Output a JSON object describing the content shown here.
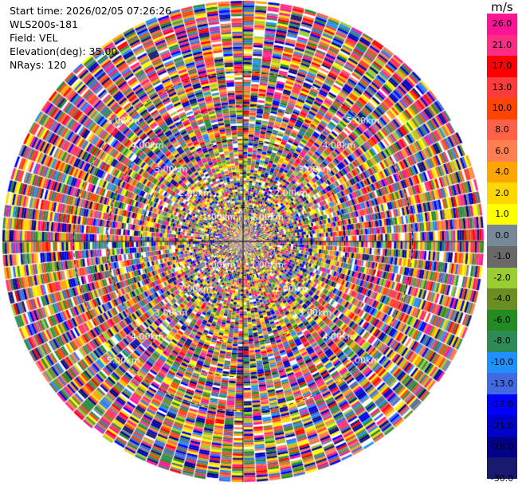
{
  "info": {
    "start_time": "Start time: 2026/02/05 07:26:26",
    "instrument": "WLS200s-181",
    "field": "Field: VEL",
    "elevation": "Elevation(deg): 35.00",
    "nrays": "NRays: 120"
  },
  "colorbar": {
    "unit": "m/s",
    "ticks": [
      "26.0",
      "21.0",
      "17.0",
      "13.0",
      "10.0",
      "8.0",
      "6.0",
      "4.0",
      "2.0",
      "1.0",
      "0.0",
      "-1.0",
      "-2.0",
      "-4.0",
      "-6.0",
      "-8.0",
      "-10.0",
      "-13.0",
      "-17.0",
      "-21.0",
      "-26.0",
      "-30.0"
    ],
    "colors": [
      "#ff1493",
      "#ff2e82",
      "#ff0000",
      "#ff3c3c",
      "#ff4500",
      "#ff6347",
      "#ff7f50",
      "#ffa500",
      "#ffd700",
      "#ffff00",
      "#778899",
      "#696969",
      "#9acd32",
      "#6b8e23",
      "#228b22",
      "#2e8b57",
      "#1e90ff",
      "#4169e1",
      "#0000ff",
      "#0000cd",
      "#00008b",
      "#191970"
    ]
  },
  "chart_data": {
    "type": "heatmap",
    "projection": "polar (PPI)",
    "field": "VEL",
    "units": "m/s",
    "elevation_deg": 35.0,
    "n_rays": 120,
    "range_rings_km": [
      1.0,
      2.0,
      3.0,
      4.0,
      5.0
    ],
    "ring_labels": [
      "1.00km",
      "2.00km",
      "3.00km",
      "4.00km",
      "5.00km"
    ],
    "max_range_km": 7.1,
    "color_scale_min": -30.0,
    "color_scale_max": 26.0,
    "note_text": ""
  }
}
